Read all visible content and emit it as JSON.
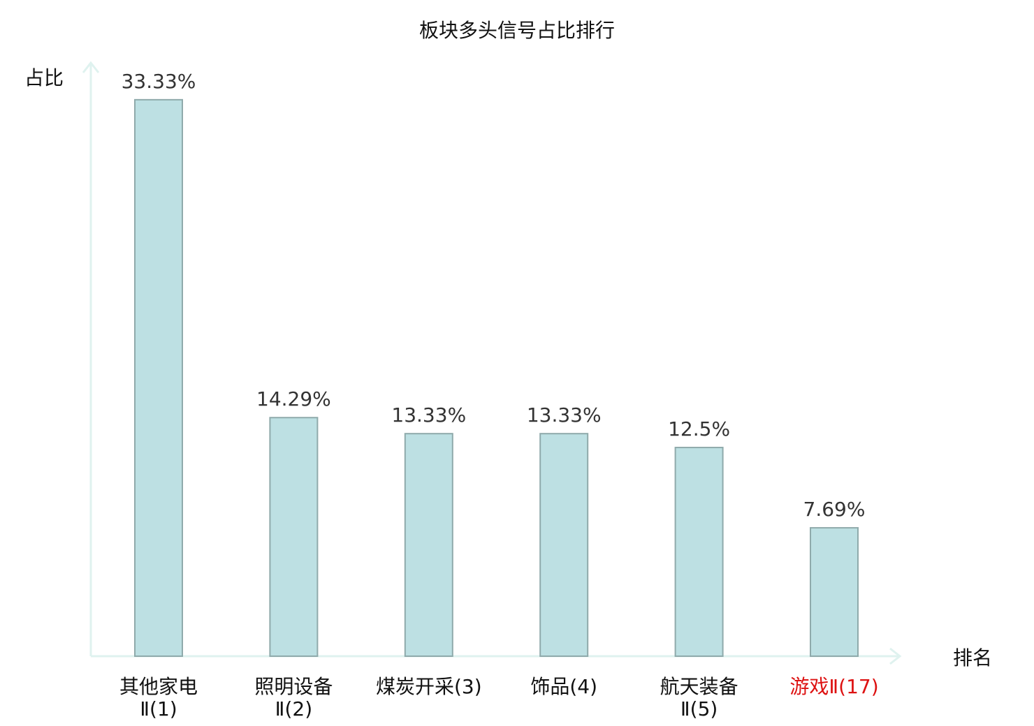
{
  "chart_data": {
    "type": "bar",
    "title": "板块多头信号占比排行",
    "xlabel": "排名",
    "ylabel": "占比",
    "ylim": [
      0,
      36
    ],
    "grid": false,
    "categories": [
      {
        "name": "其他家电",
        "suffix": "Ⅱ(1)",
        "highlight": false
      },
      {
        "name": "照明设备",
        "suffix": "Ⅱ(2)",
        "highlight": false
      },
      {
        "name": "煤炭开采(3)",
        "suffix": "",
        "highlight": false
      },
      {
        "name": "饰品(4)",
        "suffix": "",
        "highlight": false
      },
      {
        "name": "航天装备",
        "suffix": "Ⅱ(5)",
        "highlight": false
      },
      {
        "name": "游戏Ⅱ(17)",
        "suffix": "",
        "highlight": true
      }
    ],
    "values": [
      33.33,
      14.29,
      13.33,
      13.33,
      12.5,
      7.69
    ],
    "value_labels": [
      "33.33%",
      "14.29%",
      "13.33%",
      "13.33%",
      "12.5%",
      "7.69%"
    ],
    "colors": {
      "bar_fill": "#bde0e3",
      "bar_stroke": "#8faaab",
      "axis": "#dff2ef",
      "label_normal": "#111111",
      "label_highlight": "#dd1111"
    }
  }
}
